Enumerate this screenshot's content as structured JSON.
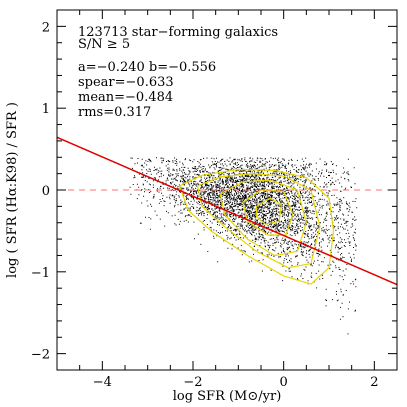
{
  "chart_data": {
    "type": "scatter",
    "xlabel": "log SFR (M⊙/yr)",
    "ylabel": "log ( SFR (Hα:K98) / SFR )",
    "xlim": [
      -5,
      2.5
    ],
    "ylim": [
      -2.2,
      2.2
    ],
    "xticks": [
      -4,
      -2,
      0,
      2
    ],
    "yticks": [
      -2,
      -1,
      0,
      1,
      2
    ],
    "xtick_labels": [
      "−4",
      "−2",
      "0",
      "2"
    ],
    "ytick_labels": [
      "−2",
      "−1",
      "0",
      "1",
      "2"
    ],
    "annotations": [
      "123713 star−forming galaxics",
      "S/N ≥ 5",
      "a=−0.240    b=−0.556",
      "spear=−0.633",
      "mean=−0.484",
      "rms=0.317"
    ],
    "fit_line": {
      "slope": -0.24,
      "intercept": -0.556,
      "color": "#e00000"
    },
    "reference_line": {
      "y": 0,
      "style": "dashed",
      "color": "#ff7070"
    },
    "contour_color": "#e8d800",
    "contours": [
      [
        [
          -2.3,
          0.05
        ],
        [
          -1.8,
          0.18
        ],
        [
          -1.0,
          0.25
        ],
        [
          -0.2,
          0.24
        ],
        [
          0.5,
          0.15
        ],
        [
          1.0,
          -0.1
        ],
        [
          1.1,
          -0.5
        ],
        [
          1.0,
          -0.95
        ],
        [
          0.6,
          -1.15
        ],
        [
          0.0,
          -1.05
        ],
        [
          -0.8,
          -0.8
        ],
        [
          -1.6,
          -0.5
        ],
        [
          -2.1,
          -0.25
        ]
      ],
      [
        [
          -1.9,
          0.05
        ],
        [
          -1.4,
          0.16
        ],
        [
          -0.7,
          0.2
        ],
        [
          0.0,
          0.17
        ],
        [
          0.6,
          0.0
        ],
        [
          0.8,
          -0.45
        ],
        [
          0.6,
          -0.9
        ],
        [
          0.1,
          -0.95
        ],
        [
          -0.6,
          -0.75
        ],
        [
          -1.3,
          -0.45
        ],
        [
          -1.8,
          -0.2
        ]
      ],
      [
        [
          -1.4,
          -0.05
        ],
        [
          -0.9,
          0.1
        ],
        [
          -0.3,
          0.12
        ],
        [
          0.3,
          0.0
        ],
        [
          0.5,
          -0.4
        ],
        [
          0.3,
          -0.75
        ],
        [
          -0.2,
          -0.8
        ],
        [
          -0.8,
          -0.6
        ],
        [
          -1.3,
          -0.3
        ]
      ],
      [
        [
          -0.9,
          -0.15
        ],
        [
          -0.5,
          0.0
        ],
        [
          0.0,
          -0.02
        ],
        [
          0.2,
          -0.3
        ],
        [
          0.05,
          -0.55
        ],
        [
          -0.35,
          -0.55
        ],
        [
          -0.8,
          -0.38
        ]
      ],
      [
        [
          -0.6,
          -0.2
        ],
        [
          -0.3,
          -0.1
        ],
        [
          -0.05,
          -0.18
        ],
        [
          -0.1,
          -0.38
        ],
        [
          -0.4,
          -0.42
        ],
        [
          -0.6,
          -0.32
        ]
      ]
    ],
    "scatter_summary": {
      "n_points": 123713,
      "color": "#000000"
    },
    "grid": false,
    "legend": false
  }
}
